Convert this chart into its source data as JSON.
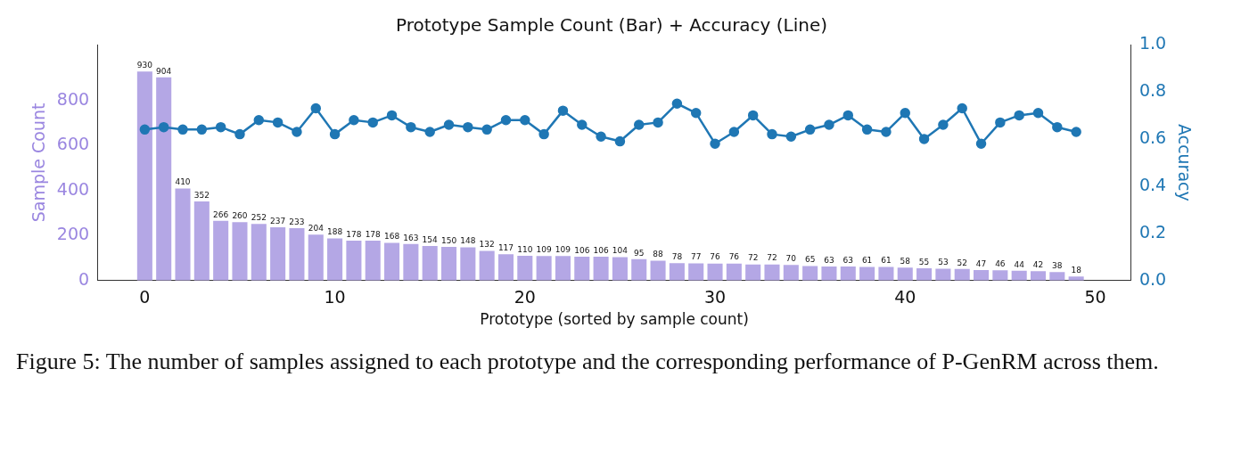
{
  "chart_data": {
    "type": "bar",
    "title": "Prototype Sample Count (Bar) + Accuracy (Line)",
    "xlabel": "Prototype (sorted by sample count)",
    "ylabel": "Sample Count",
    "y2label": "Accuracy",
    "x": [
      0,
      1,
      2,
      3,
      4,
      5,
      6,
      7,
      8,
      9,
      10,
      11,
      12,
      13,
      14,
      15,
      16,
      17,
      18,
      19,
      20,
      21,
      22,
      23,
      24,
      25,
      26,
      27,
      28,
      29,
      30,
      31,
      32,
      33,
      34,
      35,
      36,
      37,
      38,
      39,
      40,
      41,
      42,
      43,
      44,
      45,
      46,
      47,
      48,
      49
    ],
    "xlim": [
      -2.5,
      51.9
    ],
    "xticks": [
      0,
      10,
      20,
      30,
      40,
      50
    ],
    "ylim": [
      0,
      1050
    ],
    "yticks": [
      0,
      200,
      400,
      600,
      800
    ],
    "y2lim": [
      0,
      1
    ],
    "y2ticks": [
      {
        "value": 0,
        "label": "0.0"
      },
      {
        "value": 0.2,
        "label": "0.2"
      },
      {
        "value": 0.4,
        "label": "0.4"
      },
      {
        "value": 0.6,
        "label": "0.6"
      },
      {
        "value": 0.8,
        "label": "0.8"
      },
      {
        "value": 1,
        "label": "1.0"
      }
    ],
    "grid": false,
    "legend": false,
    "marker": "circle",
    "line_style": "solid",
    "series": [
      {
        "color": "#b4a7e5",
        "values": [
          930,
          904,
          410,
          352,
          266,
          260,
          252,
          237,
          233,
          204,
          188,
          178,
          178,
          168,
          163,
          154,
          150,
          148,
          132,
          117,
          110,
          109,
          109,
          106,
          106,
          104,
          95,
          88,
          78,
          77,
          76,
          76,
          72,
          72,
          70,
          65,
          63,
          63,
          61,
          61,
          58,
          55,
          53,
          52,
          47,
          46,
          44,
          42,
          38,
          18
        ],
        "value_labels": [
          "930",
          "904",
          "410",
          "352",
          "266",
          "260",
          "252",
          "237",
          "233",
          "204",
          "188",
          "178",
          "178",
          "168",
          "163",
          "154",
          "150",
          "148",
          "132",
          "117",
          "110",
          "109",
          "109",
          "106",
          "106",
          "104",
          "95",
          "88",
          "78",
          "77",
          "76",
          "76",
          "72",
          "72",
          "70",
          "65",
          "63",
          "63",
          "61",
          "61",
          "58",
          "55",
          "53",
          "52",
          "47",
          "46",
          "44",
          "42",
          "38",
          "18"
        ]
      },
      {
        "type": "line",
        "axis": "y2",
        "color": "#1f77b4",
        "values": [
          0.64,
          0.65,
          0.64,
          0.64,
          0.65,
          0.62,
          0.68,
          0.67,
          0.63,
          0.73,
          0.62,
          0.68,
          0.67,
          0.7,
          0.65,
          0.63,
          0.66,
          0.65,
          0.64,
          0.68,
          0.68,
          0.62,
          0.72,
          0.66,
          0.61,
          0.59,
          0.66,
          0.67,
          0.75,
          0.71,
          0.58,
          0.63,
          0.7,
          0.62,
          0.61,
          0.64,
          0.66,
          0.7,
          0.64,
          0.63,
          0.71,
          0.6,
          0.66,
          0.73,
          0.58,
          0.67,
          0.7,
          0.71,
          0.65,
          0.63
        ]
      }
    ],
    "annotations": [
      "Figure 5: The number of samples assigned to each prototype and the corresponding performance of P-GenRM across them."
    ]
  }
}
